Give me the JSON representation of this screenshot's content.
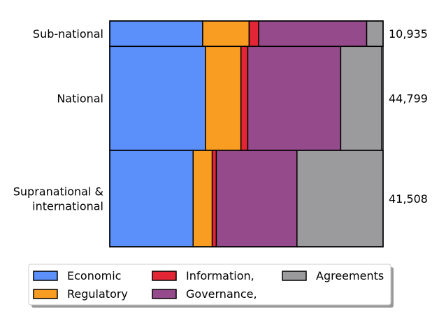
{
  "chart_data": {
    "type": "bar",
    "subtype": "mosaic (stacked proportional, row height ∝ total)",
    "categories": [
      "Sub-national",
      "National",
      "Supranational & international"
    ],
    "category_label_lines": [
      [
        "Sub-national"
      ],
      [
        "National"
      ],
      [
        "Supranational &",
        "international"
      ]
    ],
    "totals": [
      10935,
      44799,
      41508
    ],
    "total_labels": [
      "10,935",
      "44,799",
      "41,508"
    ],
    "series": [
      {
        "name": "Economic",
        "color": "#5b8ff9",
        "shares": [
          0.34,
          0.35,
          0.305
        ]
      },
      {
        "name": "Regulatory",
        "color": "#f89c22",
        "shares": [
          0.17,
          0.13,
          0.07
        ]
      },
      {
        "name": "Information,",
        "color": "#e32636",
        "shares": [
          0.035,
          0.025,
          0.015
        ]
      },
      {
        "name": "Governance,",
        "color": "#954a8b",
        "shares": [
          0.395,
          0.34,
          0.295
        ]
      },
      {
        "name": "Agreements",
        "color": "#9b9b9e",
        "shares": [
          0.06,
          0.15,
          0.315
        ]
      }
    ],
    "xlim": [
      0,
      1
    ],
    "legend_position": "bottom",
    "grid": false
  }
}
